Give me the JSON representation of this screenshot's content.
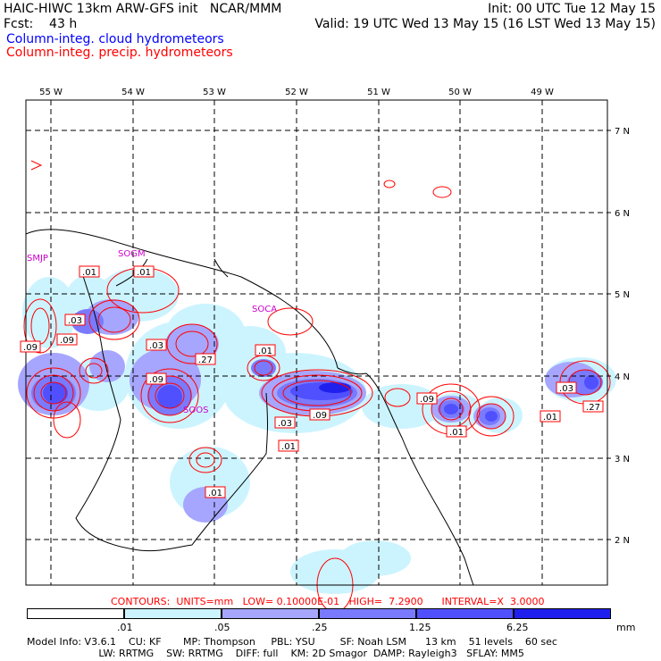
{
  "header": {
    "line1_left": "HAIC-HIWC 13km ARW-GFS init   NCAR/MMM",
    "line1_right": "Init: 00 UTC Tue 12 May 15",
    "line2_left": "Fcst:    43 h",
    "line2_right": "Valid: 19 UTC Wed 13 May 15 (16 LST Wed 13 May 15)",
    "legend_cloud": "Column-integ. cloud hydrometeors",
    "legend_precip": "Column-integ. precip. hydrometeors"
  },
  "colors": {
    "cloud_levels": [
      "#ffffff",
      "#ccf4ff",
      "#a6a6ff",
      "#7a7aff",
      "#5050ff",
      "#2020ee"
    ],
    "precip_contour": "#ff0000",
    "station_label": "#cc00cc"
  },
  "map": {
    "lon_labels": [
      "55 W",
      "54 W",
      "53 W",
      "52 W",
      "51 W",
      "50 W",
      "49 W"
    ],
    "lat_labels": [
      "7 N",
      "6 N",
      "5 N",
      "4 N",
      "3 N",
      "2 N"
    ],
    "stations": [
      "SMJP",
      "SOGM",
      "SOCA",
      "SOOS"
    ],
    "contour_labels": [
      ".01",
      ".01",
      ".03",
      ".09",
      ".03",
      ".09",
      ".27",
      ".01",
      ".09",
      ".03",
      ".09",
      ".01",
      ".09",
      ".01",
      ".01",
      ".03",
      ".27",
      ".01",
      ".01"
    ]
  },
  "contour_info": {
    "text": "CONTOURS:  UNITS=mm   LOW= 0.10000E-01   HIGH=  7.2900      INTERVAL=X  3.0000"
  },
  "colorbar": {
    "labels": [
      ".01",
      ".05",
      ".25",
      "1.25",
      "6.25"
    ],
    "unit": "mm"
  },
  "footer": {
    "line1": "Model Info: V3.6.1    CU: KF       MP: Thompson     PBL: YSU        SF: Noah LSM      13 km    51 levels    60 sec",
    "line2": "                       LW: RRTMG    SW: RRTMG    DIFF: full    KM: 2D Smagor  DAMP: Rayleigh3   SFLAY: MM5"
  }
}
